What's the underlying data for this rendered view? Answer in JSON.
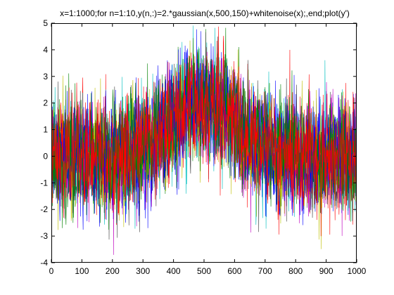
{
  "chart_data": {
    "type": "line",
    "title": "x=1:1000;for n=1:10,y(n,:)=2.*gaussian(x,500,150)+whitenoise(x);,end;plot(y')",
    "xlabel": "",
    "ylabel": "",
    "xlim": [
      0,
      1000
    ],
    "ylim": [
      -4,
      5
    ],
    "x_ticks": [
      0,
      100,
      200,
      300,
      400,
      500,
      600,
      700,
      800,
      900,
      1000
    ],
    "y_ticks": [
      -4,
      -3,
      -2,
      -1,
      0,
      1,
      2,
      3,
      4,
      5
    ],
    "grid": false,
    "legend": false,
    "x_range": [
      1,
      1000
    ],
    "model": {
      "mean_amplitude": 2,
      "gaussian_center": 500,
      "gaussian_width": 150,
      "noise_std": 1
    },
    "series": [
      {
        "color": "#0000ff"
      },
      {
        "color": "#008000"
      },
      {
        "color": "#ff0000"
      },
      {
        "color": "#00bfbf"
      },
      {
        "color": "#bf00bf"
      },
      {
        "color": "#bfbf00"
      },
      {
        "color": "#404040"
      },
      {
        "color": "#0000ff"
      },
      {
        "color": "#008000"
      },
      {
        "color": "#ff0000"
      }
    ]
  }
}
